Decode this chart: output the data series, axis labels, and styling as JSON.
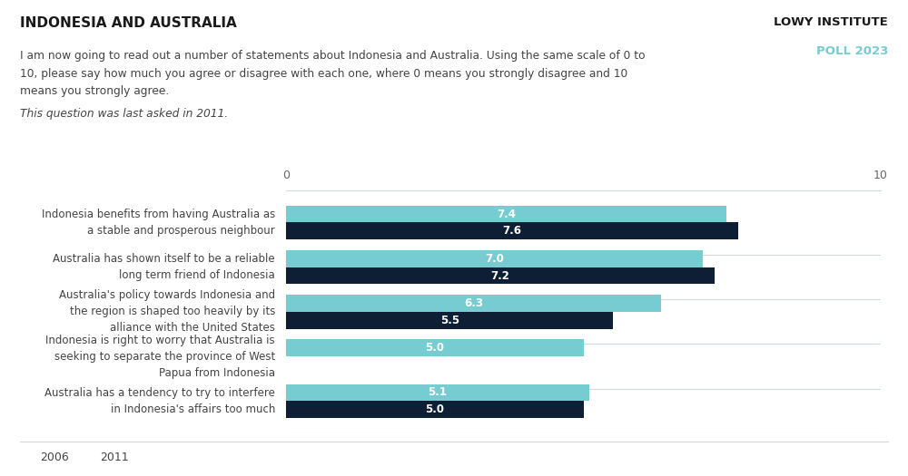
{
  "title": "INDONESIA AND AUSTRALIA",
  "lowy_label": "LOWY INSTITUTE",
  "poll_label": "POLL 2023",
  "description_line1": "I am now going to read out a number of statements about Indonesia and Australia. Using the same scale of 0 to",
  "description_line2": "10, please say how much you agree or disagree with each one, where 0 means you strongly disagree and 10",
  "description_line3": "means you strongly agree.",
  "note": "This question was last asked in 2011.",
  "categories": [
    "Indonesia benefits from having Australia as\na stable and prosperous neighbour",
    "Australia has shown itself to be a reliable\nlong term friend of Indonesia",
    "Australia's policy towards Indonesia and\nthe region is shaped too heavily by its\nalliance with the United States",
    "Indonesia is right to worry that Australia is\nseeking to separate the province of West\nPapua from Indonesia",
    "Australia has a tendency to try to interfere\nin Indonesia's affairs too much"
  ],
  "values_2006": [
    7.4,
    7.0,
    6.3,
    5.0,
    5.1
  ],
  "values_2011": [
    7.6,
    7.2,
    5.5,
    null,
    5.0
  ],
  "color_2006": "#76ccd0",
  "color_2011": "#0d1e35",
  "xlim": [
    0,
    10
  ],
  "bar_height": 0.38,
  "label_fontsize": 8.5,
  "value_fontsize": 8.5,
  "legend_2006": "2006",
  "legend_2011": "2011",
  "background_color": "#ffffff",
  "text_color": "#444444",
  "divider_color": "#d0d8e0",
  "title_fontsize": 11,
  "header_fontsize": 8.8
}
